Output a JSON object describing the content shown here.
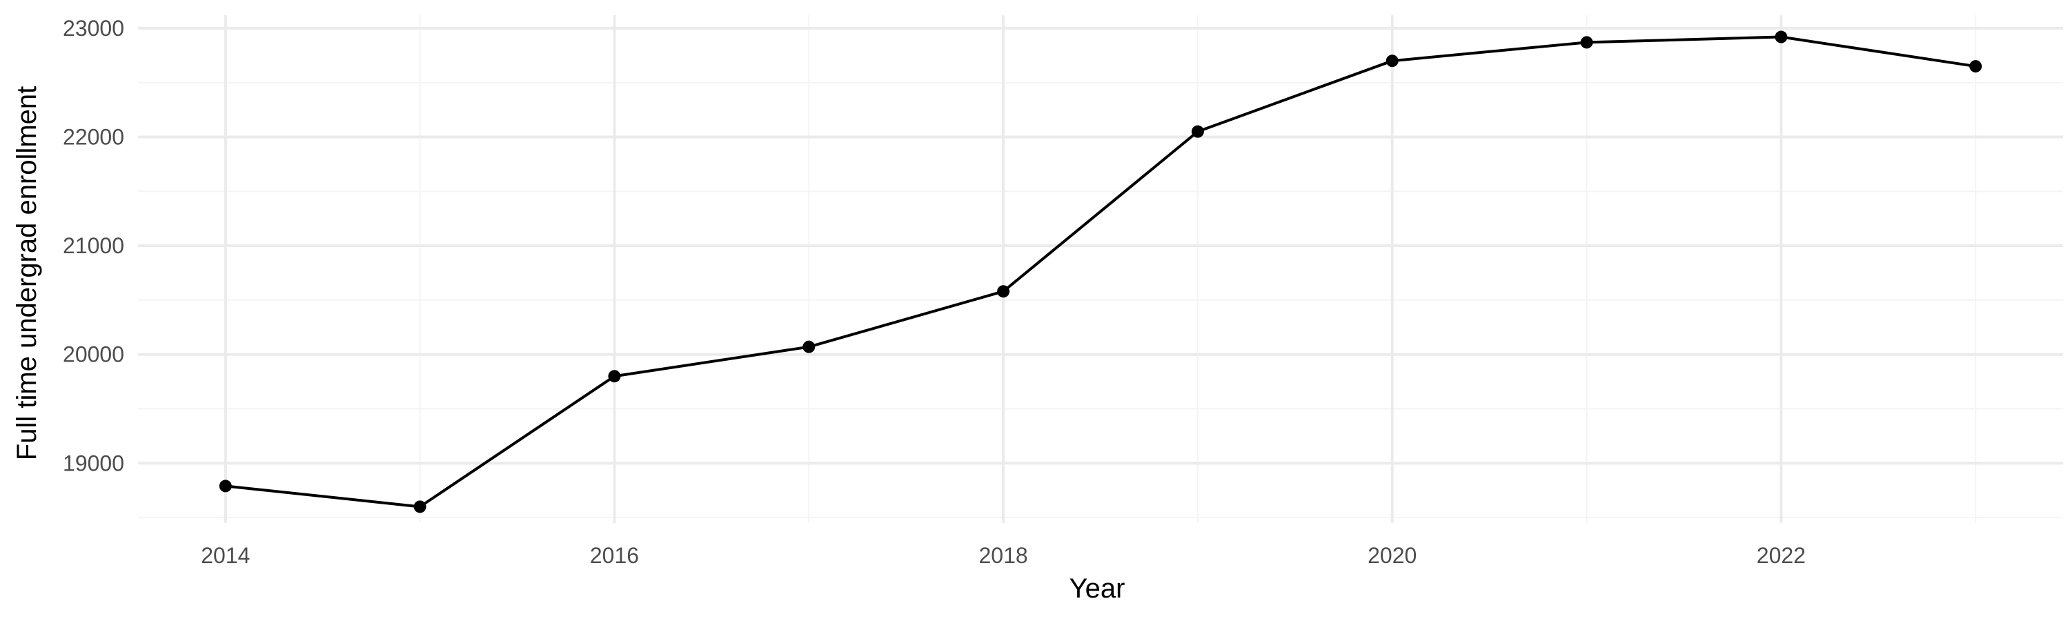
{
  "chart_data": {
    "type": "line",
    "title": "",
    "xlabel": "Year",
    "ylabel": "Full time undergrad enrollment",
    "x": [
      2014,
      2015,
      2016,
      2017,
      2018,
      2019,
      2020,
      2021,
      2022,
      2023
    ],
    "series": [
      {
        "values": [
          18790,
          18600,
          19800,
          20070,
          20580,
          22050,
          22700,
          22870,
          22920,
          22650
        ]
      }
    ],
    "x_ticks": [
      "2014",
      "2016",
      "2018",
      "2020",
      "2022"
    ],
    "y_ticks": [
      "19000",
      "20000",
      "21000",
      "22000",
      "23000"
    ],
    "xlim": [
      2013.55,
      2023.45
    ],
    "ylim": [
      18450,
      23120
    ],
    "grid": true,
    "legend": "none",
    "colors": {
      "line": "#000000",
      "points": "#000000",
      "grid_major": "#ebebeb",
      "grid_minor": "#f4f4f4",
      "tick_text": "#4d4d4d",
      "background": "#ffffff"
    }
  }
}
